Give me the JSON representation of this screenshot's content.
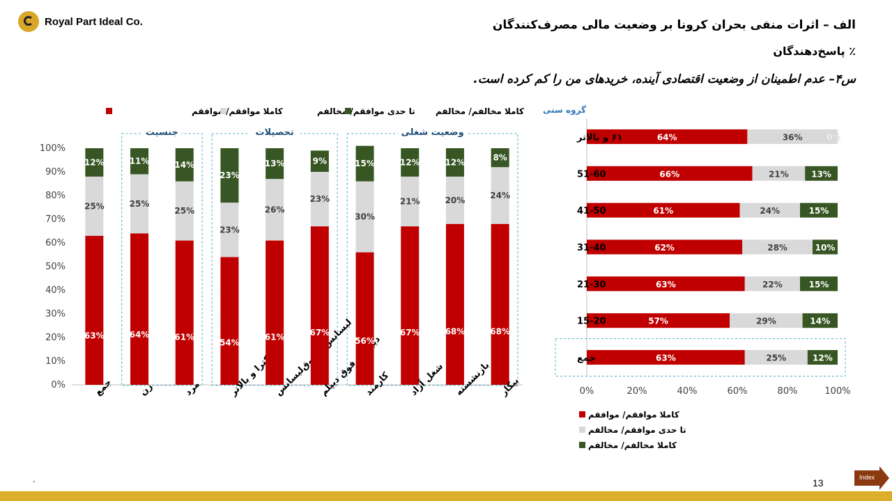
{
  "header": {
    "company": "Royal Part Ideal Co.",
    "title_line1": "الف – اثرات منفی بحران کرونا بر وضعیت مالی مصرف‌کنندگان",
    "title_line2": "٪ پاسخ‌دهندگان",
    "question": "س۴– عدم اطمینان از وضعیت اقتصادی آینده، خریدهای من را کم کرده است."
  },
  "footer": {
    "page_number": "13",
    "index_label": "Index",
    "dot": "."
  },
  "colors": {
    "agree": "#c00000",
    "neutral": "#d9d9d9",
    "disagree": "#375623",
    "group_box": "#4bacc6",
    "gold": "#dbae2c",
    "index_btn": "#8b3a0f"
  },
  "chart_data": [
    {
      "type": "bar",
      "orientation": "vertical",
      "stacked": true,
      "categories": [
        "جمع",
        "زن",
        "مرد",
        "دکترا و بالاتر",
        "لیسانس و فوق‌لیسانس",
        "دیپلم و فوق دیپلم",
        "کارمند",
        "شغل آزاد",
        "بازنشسته",
        "بیکار"
      ],
      "groups": [
        {
          "label": "جنسیت",
          "members": [
            1,
            2
          ]
        },
        {
          "label": "تحصیلات",
          "members": [
            3,
            4,
            5
          ]
        },
        {
          "label": "وضعیت شغلی",
          "members": [
            6,
            7,
            8,
            9
          ]
        }
      ],
      "series": [
        {
          "name": "کاملا موافقم/ موافقم",
          "color": "#c00000",
          "values": [
            63,
            64,
            61,
            54,
            61,
            67,
            56,
            67,
            68,
            68
          ]
        },
        {
          "name": "تا حدی موافقم/ مخالفم",
          "color": "#d9d9d9",
          "values": [
            25,
            25,
            25,
            23,
            26,
            23,
            30,
            21,
            20,
            24
          ]
        },
        {
          "name": "کاملا مخالفم/ مخالفم",
          "color": "#375623",
          "values": [
            12,
            11,
            14,
            23,
            13,
            9,
            15,
            12,
            12,
            8
          ]
        }
      ],
      "y_ticks": [
        "0%",
        "10%",
        "20%",
        "30%",
        "40%",
        "50%",
        "60%",
        "70%",
        "80%",
        "90%",
        "100%"
      ],
      "ylim": [
        0,
        100
      ],
      "legend_position": "top"
    },
    {
      "type": "bar",
      "orientation": "horizontal",
      "stacked": true,
      "title": "گروه سنی",
      "categories": [
        "۶۱ و بالاتر",
        "51-60",
        "41-50",
        "31-40",
        "21-30",
        "15-20",
        "جمع"
      ],
      "highlight_category": "جمع",
      "series": [
        {
          "name": "کاملا موافقم/ موافقم",
          "color": "#c00000",
          "values": [
            64,
            66,
            61,
            62,
            63,
            57,
            63
          ]
        },
        {
          "name": "تا حدی موافقم/ مخالفم",
          "color": "#d9d9d9",
          "values": [
            36,
            21,
            24,
            28,
            22,
            29,
            25
          ]
        },
        {
          "name": "کاملا مخالفم/ مخالفم",
          "color": "#375623",
          "values": [
            0,
            13,
            15,
            10,
            15,
            14,
            12
          ]
        }
      ],
      "x_ticks": [
        "0%",
        "20%",
        "40%",
        "60%",
        "80%",
        "100%"
      ],
      "xlim": [
        0,
        100
      ],
      "legend_position": "bottom"
    }
  ]
}
